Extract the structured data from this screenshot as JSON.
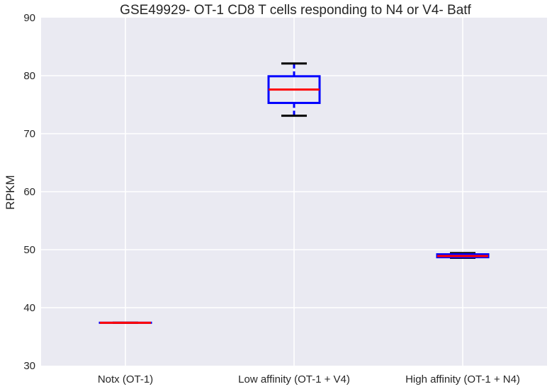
{
  "chart_data": {
    "type": "box",
    "title": "GSE49929- OT-1 CD8 T cells responding to N4 or V4- Batf",
    "xlabel": "",
    "ylabel": "RPKM",
    "ylim": [
      30,
      90
    ],
    "yticks": [
      "30",
      "40",
      "50",
      "60",
      "70",
      "80",
      "90"
    ],
    "grid": true,
    "categories": [
      "Notx (OT-1)",
      "Low affinity (OT-1 + V4)",
      "High affinity (OT-1 + N4)"
    ],
    "boxes": [
      {
        "category": "Notx (OT-1)",
        "whisker_low": 37.4,
        "q1": 37.4,
        "median": 37.4,
        "q3": 37.4,
        "whisker_high": 37.4
      },
      {
        "category": "Low affinity (OT-1 + V4)",
        "whisker_low": 73.1,
        "q1": 75.3,
        "median": 77.6,
        "q3": 79.9,
        "whisker_high": 82.1
      },
      {
        "category": "High affinity (OT-1 + N4)",
        "whisker_low": 48.6,
        "q1": 48.7,
        "median": 48.9,
        "q3": 49.2,
        "whisker_high": 49.4
      }
    ],
    "colors": {
      "background": "#eaeaf2",
      "grid": "#ffffff",
      "box": "#0000ff",
      "median": "#ff0000",
      "whisker": "#0000ff",
      "cap": "#000000"
    }
  }
}
